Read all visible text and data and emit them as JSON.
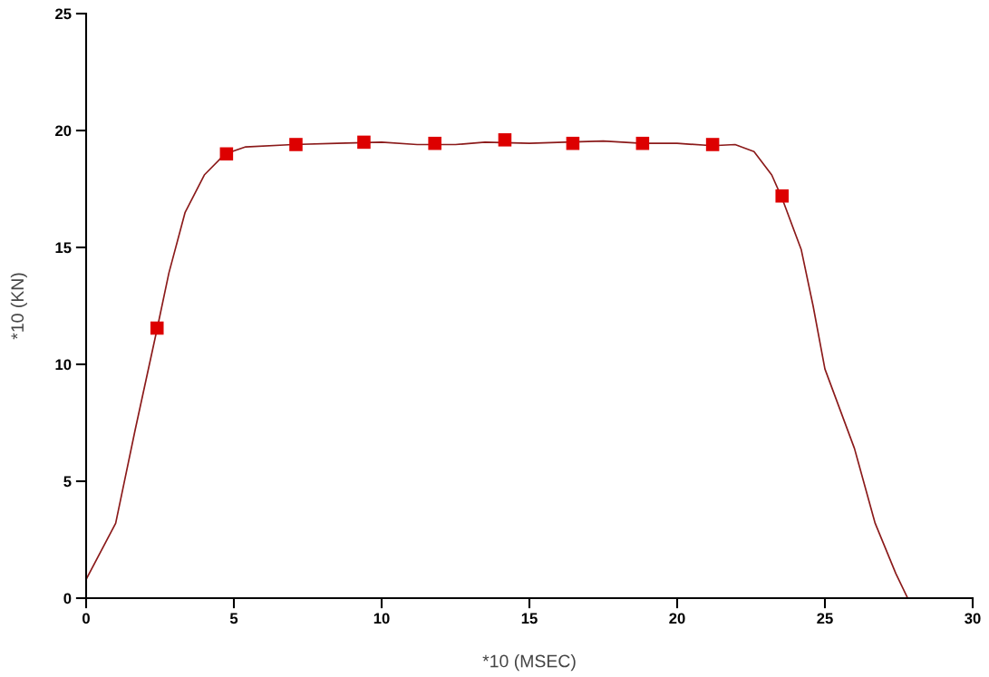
{
  "chart_data": {
    "type": "line",
    "xlabel": "*10 (MSEC)",
    "ylabel": "*10 (KN)",
    "xlim": [
      0,
      30
    ],
    "ylim": [
      0,
      25
    ],
    "xticks": [
      0,
      5,
      10,
      15,
      20,
      25,
      30
    ],
    "yticks": [
      0,
      5,
      10,
      15,
      20,
      25
    ],
    "grid": false,
    "legend": false,
    "series": [
      {
        "color": "#8b1a1a",
        "marker": "none",
        "line_style": "solid",
        "x": [
          0,
          1.0,
          1.66,
          2.4,
          2.8,
          3.35,
          4.0,
          4.7,
          5.4,
          7.0,
          8.5,
          10.0,
          11.2,
          12.5,
          13.5,
          15.0,
          16.2,
          17.5,
          18.8,
          20.0,
          21.2,
          21.96,
          22.6,
          23.2,
          23.55,
          24.2,
          24.6,
          25.0,
          26.0,
          26.7,
          27.4,
          27.8
        ],
        "values": [
          0.8,
          3.2,
          7.2,
          11.5,
          13.9,
          16.5,
          18.1,
          19.0,
          19.3,
          19.4,
          19.45,
          19.5,
          19.4,
          19.4,
          19.5,
          19.45,
          19.5,
          19.55,
          19.45,
          19.45,
          19.35,
          19.4,
          19.1,
          18.1,
          17.1,
          14.9,
          12.5,
          9.8,
          6.4,
          3.2,
          1.05,
          0
        ]
      },
      {
        "type": "scatter",
        "color": "#dd0000",
        "marker": "square",
        "x": [
          2.4,
          4.75,
          7.1,
          9.4,
          11.8,
          14.17,
          16.47,
          18.83,
          21.2,
          23.55
        ],
        "values": [
          11.55,
          19.0,
          19.4,
          19.5,
          19.45,
          19.6,
          19.45,
          19.45,
          19.4,
          17.2
        ]
      }
    ]
  }
}
